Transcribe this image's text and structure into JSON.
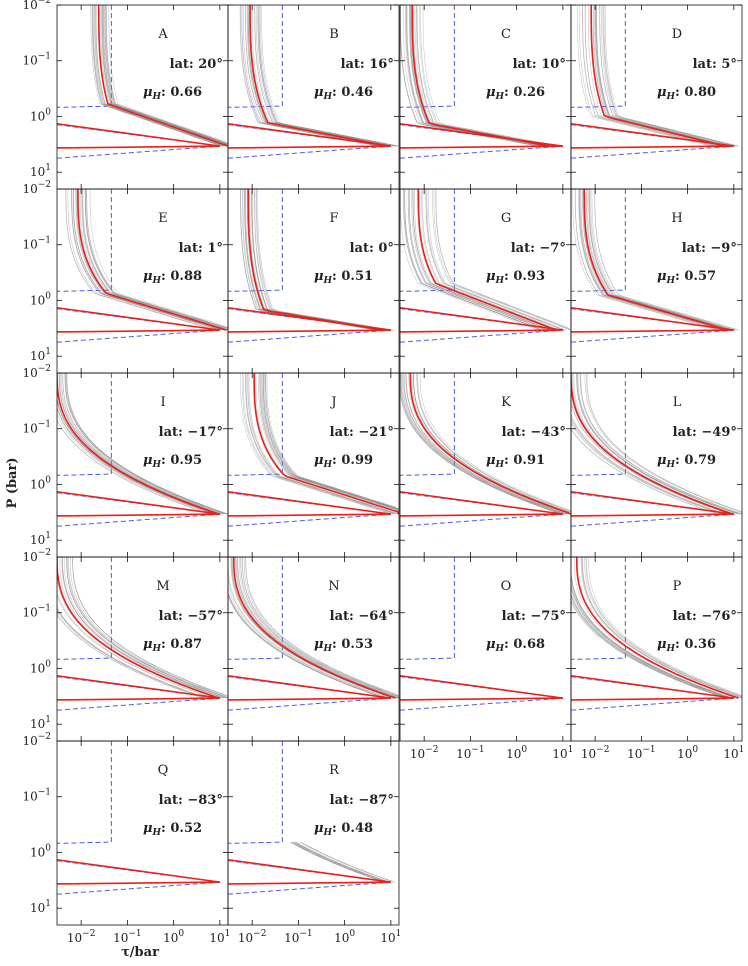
{
  "chart_data": {
    "type": "line",
    "ylabel": "P (bar)",
    "xlabel": "τ/bar",
    "x_scale": "log",
    "y_scale": "log",
    "xlim": [
      0.003,
      15
    ],
    "ylim_top_to_bottom": [
      0.01,
      20
    ],
    "x_ticks": [
      {
        "value": 0.01,
        "base": "10",
        "exp": "−2"
      },
      {
        "value": 0.1,
        "base": "10",
        "exp": "−1"
      },
      {
        "value": 1,
        "base": "10",
        "exp": "0"
      },
      {
        "value": 10,
        "base": "10",
        "exp": "1"
      }
    ],
    "y_ticks": [
      {
        "value": 0.01,
        "base": "10",
        "exp": "−2"
      },
      {
        "value": 0.1,
        "base": "10",
        "exp": "−1"
      },
      {
        "value": 1,
        "base": "10",
        "exp": "0"
      },
      {
        "value": 10,
        "base": "10",
        "exp": "1"
      }
    ],
    "colors": {
      "best_fit": "#e8201a",
      "prior_envelope": "#4a5ce8",
      "samples": "#8a8a8a"
    },
    "series_legend": {
      "best_fit": "retrieved best-fit profile (red)",
      "prior_envelope": "prior bounds (blue dashed)",
      "samples": "posterior samples (grey)"
    },
    "panels": [
      {
        "letter": "A",
        "lat_label": "lat:",
        "lat": "20°",
        "mu_label": "μ",
        "mu_sub": "H",
        "mu": ": 0.66",
        "knee_p": 0.6,
        "knee_tau": 0.038,
        "top_tau": 0.024,
        "spread": 0.1,
        "mode": "knee"
      },
      {
        "letter": "B",
        "lat_label": "lat:",
        "lat": "16°",
        "mu_label": "μ",
        "mu_sub": "H",
        "mu": ": 0.46",
        "knee_p": 1.3,
        "knee_tau": 0.022,
        "top_tau": 0.009,
        "spread": 0.12,
        "mode": "knee"
      },
      {
        "letter": "C",
        "lat_label": "lat:",
        "lat": "10°",
        "mu_label": "μ",
        "mu_sub": "H",
        "mu": ": 0.26",
        "knee_p": 1.35,
        "knee_tau": 0.013,
        "top_tau": 0.0055,
        "spread": 0.12,
        "mode": "knee"
      },
      {
        "letter": "D",
        "lat_label": "lat:",
        "lat": "5°",
        "mu_label": "μ",
        "mu_sub": "H",
        "mu": ": 0.80",
        "knee_p": 1.0,
        "knee_tau": 0.016,
        "top_tau": 0.0082,
        "spread": 0.14,
        "mode": "knee"
      },
      {
        "letter": "E",
        "lat_label": "lat:",
        "lat": "1°",
        "mu_label": "μ",
        "mu_sub": "H",
        "mu": ": 0.88",
        "knee_p": 0.75,
        "knee_tau": 0.035,
        "top_tau": 0.0085,
        "spread": 0.12,
        "mode": "knee"
      },
      {
        "letter": "F",
        "lat_label": "lat:",
        "lat": "0°",
        "mu_label": "μ",
        "mu_sub": "H",
        "mu": ": 0.51",
        "knee_p": 1.5,
        "knee_tau": 0.018,
        "top_tau": 0.0082,
        "spread": 0.1,
        "mode": "knee"
      },
      {
        "letter": "G",
        "lat_label": "lat:",
        "lat": "−7°",
        "mu_label": "μ",
        "mu_sub": "H",
        "mu": ": 0.93",
        "knee_p": 0.5,
        "knee_tau": 0.018,
        "top_tau": 0.0075,
        "spread": 0.18,
        "mode": "knee"
      },
      {
        "letter": "H",
        "lat_label": "lat:",
        "lat": "−9°",
        "mu_label": "μ",
        "mu_sub": "H",
        "mu": ": 0.57",
        "knee_p": 0.8,
        "knee_tau": 0.019,
        "top_tau": 0.0058,
        "spread": 0.12,
        "mode": "knee"
      },
      {
        "letter": "I",
        "lat_label": "lat:",
        "lat": "−17°",
        "mu_label": "μ",
        "mu_sub": "H",
        "mu": ": 0.95",
        "knee_p": 1.2,
        "knee_tau": 0.004,
        "top_tau": 0.003,
        "spread": 0.1,
        "mode": "smooth"
      },
      {
        "letter": "J",
        "lat_label": "lat:",
        "lat": "−21°",
        "mu_label": "μ",
        "mu_sub": "H",
        "mu": ": 0.99",
        "knee_p": 0.7,
        "knee_tau": 0.05,
        "top_tau": 0.011,
        "spread": 0.14,
        "mode": "knee"
      },
      {
        "letter": "K",
        "lat_label": "lat:",
        "lat": "−43°",
        "mu_label": "μ",
        "mu_sub": "H",
        "mu": ": 0.91",
        "knee_p": 1.3,
        "knee_tau": 0.004,
        "top_tau": 0.005,
        "spread": 0.12,
        "mode": "smooth"
      },
      {
        "letter": "L",
        "lat_label": "lat:",
        "lat": "−49°",
        "mu_label": "μ",
        "mu_sub": "H",
        "mu": ": 0.79",
        "knee_p": 1.4,
        "knee_tau": 0.004,
        "top_tau": 0.003,
        "spread": 0.16,
        "mode": "smooth"
      },
      {
        "letter": "M",
        "lat_label": "lat:",
        "lat": "−57°",
        "mu_label": "μ",
        "mu_sub": "H",
        "mu": ": 0.87",
        "knee_p": 1.8,
        "knee_tau": 0.004,
        "top_tau": 0.003,
        "spread": 0.16,
        "mode": "smooth"
      },
      {
        "letter": "N",
        "lat_label": "lat:",
        "lat": "−64°",
        "mu_label": "μ",
        "mu_sub": "H",
        "mu": ": 0.53",
        "knee_p": 1.6,
        "knee_tau": 0.004,
        "top_tau": 0.004,
        "spread": 0.12,
        "mode": "smooth"
      },
      {
        "letter": "O",
        "lat_label": "lat:",
        "lat": "−75°",
        "mu_label": "μ",
        "mu_sub": "H",
        "mu": ": 0.68",
        "knee_p": 1.0,
        "knee_tau": 0.004,
        "top_tau": 0.003,
        "spread": 0.05,
        "mode": "none"
      },
      {
        "letter": "P",
        "lat_label": "lat:",
        "lat": "−76°",
        "mu_label": "μ",
        "mu_sub": "H",
        "mu": ": 0.36",
        "knee_p": 1.5,
        "knee_tau": 0.004,
        "top_tau": 0.004,
        "spread": 0.14,
        "mode": "smooth"
      },
      {
        "letter": "Q",
        "lat_label": "lat:",
        "lat": "−83°",
        "mu_label": "μ",
        "mu_sub": "H",
        "mu": ": 0.52",
        "knee_p": 1.0,
        "knee_tau": 0.004,
        "top_tau": 0.003,
        "spread": 0.05,
        "mode": "none"
      },
      {
        "letter": "R",
        "lat_label": "lat:",
        "lat": "−87°",
        "mu_label": "μ",
        "mu_sub": "H",
        "mu": ": 0.48",
        "knee_p": 1.1,
        "knee_tau": 0.004,
        "top_tau": 0.003,
        "spread": 0.06,
        "mode": "tail"
      }
    ],
    "envelope": {
      "tau_low": 0.0045,
      "tau_high": 0.045,
      "break_p": 0.65,
      "lower_p_at_low_tau": 1.4,
      "lower_p_at_high_tau": 5.5,
      "peak_p": 3.4,
      "peak_tau": 10,
      "bottom_p_left": 5.6,
      "bottom_p_right": 3.6
    }
  }
}
